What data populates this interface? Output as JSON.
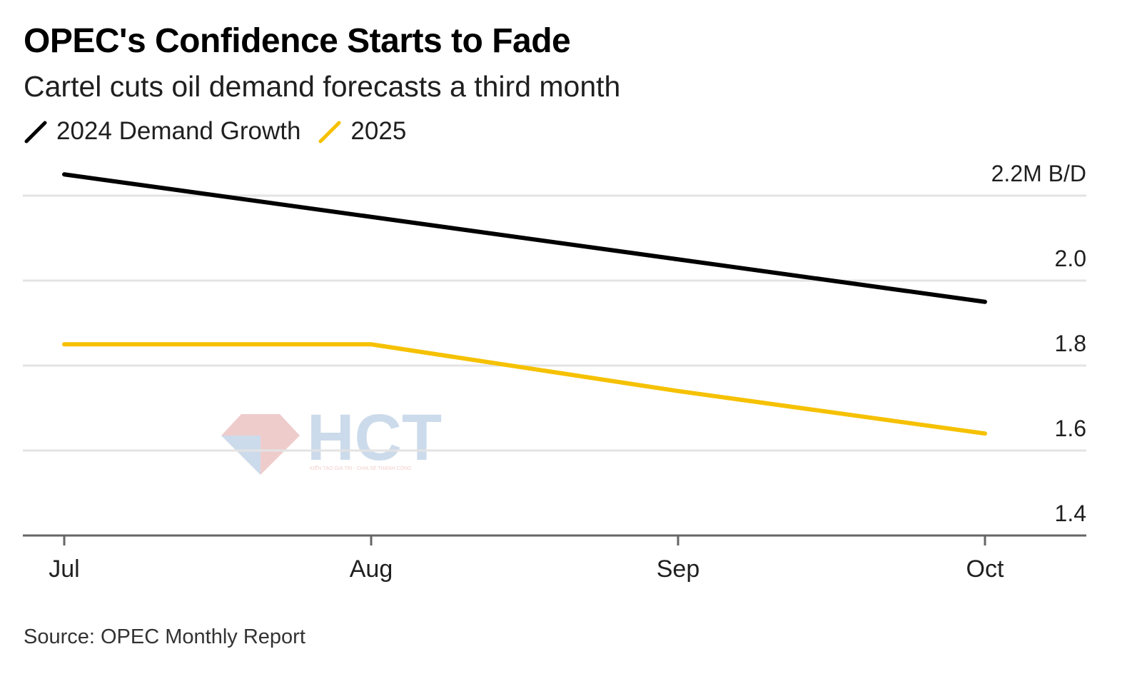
{
  "header": {
    "title": "OPEC's Confidence Starts to Fade",
    "subtitle": "Cartel cuts oil demand forecasts a third month"
  },
  "legend": [
    {
      "label": "2024 Demand Growth",
      "color": "#000000"
    },
    {
      "label": "2025",
      "color": "#f5c100"
    }
  ],
  "footer": {
    "source": "Source: OPEC Monthly Report"
  },
  "watermark": {
    "text": "HCT",
    "tagline": "KIẾN TẠO GIÁ TRỊ - CHIA SẺ THÀNH CÔNG"
  },
  "chart_data": {
    "type": "line",
    "title": "OPEC's Confidence Starts to Fade",
    "subtitle": "Cartel cuts oil demand forecasts a third month",
    "categories": [
      "Jul",
      "Aug",
      "Sep",
      "Oct"
    ],
    "y_unit_label": "2.2M B/D",
    "y_ticks": [
      2.2,
      2.0,
      1.8,
      1.6,
      1.4
    ],
    "y_tick_labels": [
      "2.2M B/D",
      "2.0",
      "1.8",
      "1.6",
      "1.4"
    ],
    "ylim": [
      1.4,
      2.2
    ],
    "series": [
      {
        "name": "2024 Demand Growth",
        "color": "#000000",
        "values": [
          2.25,
          2.15,
          2.05,
          1.95
        ]
      },
      {
        "name": "2025",
        "color": "#f5c100",
        "values": [
          1.85,
          1.85,
          1.74,
          1.64
        ]
      }
    ],
    "grid": true,
    "xlabel": "",
    "ylabel": "",
    "source": "Source: OPEC Monthly Report"
  }
}
